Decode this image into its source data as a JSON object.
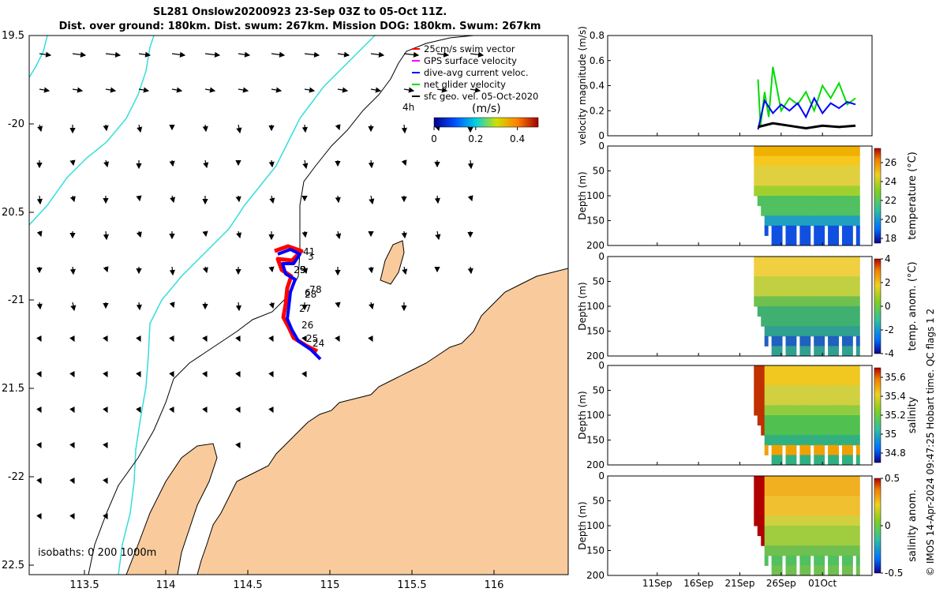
{
  "header": {
    "title_line1": "SL281 Onslow20200923 23-Sep 03Z to 05-Oct 11Z.",
    "title_line2": "Dist. over ground: 180km. Dist. swum: 267km. Mission DOG: 180km. Swum: 267km"
  },
  "footer": "© IMOS 14-Apr-2024 09:47:25 Hobart time. QC flags 1  2",
  "colors": {
    "land": "#f9cb9c",
    "track_red": "#ff0000",
    "track_blue": "#0000ff",
    "coastline": "#000000",
    "isobath_1000": "#33dddd",
    "net_velocity": "#00dd00"
  },
  "map": {
    "lon_ticks": [
      "113.5",
      "114",
      "114.5",
      "115",
      "115.5",
      "116"
    ],
    "lat_ticks": [
      "19.5",
      "-20",
      "20.5",
      "-21",
      "21.5",
      "-22",
      "22.5"
    ],
    "isobath_label": "isobaths: 0   200  1000m",
    "time_label": "4h",
    "day_labels": [
      "41",
      "3",
      "29",
      "5",
      "6",
      "7",
      "8",
      "28",
      "27",
      "26",
      "25",
      "24"
    ],
    "legend": [
      {
        "label": "25cm/s swim vector",
        "color": "#ff0000"
      },
      {
        "label": "GPS surface velocity",
        "color": "#ff00ff"
      },
      {
        "label": "dive-avg current veloc.",
        "color": "#0000ff"
      },
      {
        "label": "net glider velocity",
        "color": "#00dd00"
      },
      {
        "label": "sfc geo. vel. 05-Oct-2020",
        "color": "#000000"
      }
    ],
    "colorbar": {
      "title": "(m/s)",
      "ticks": [
        "0",
        "0.2",
        "0.4"
      ],
      "range": [
        0,
        0.5
      ]
    }
  },
  "chart_data": [
    {
      "type": "line",
      "title": "",
      "xlabel": "",
      "ylabel": "velocity magnitude (m/s)",
      "ylim": [
        0,
        0.8
      ],
      "yticks": [
        "0",
        "0.2",
        "0.4",
        "0.6",
        "0.8"
      ],
      "xlim": [
        "2020-09-05",
        "2020-10-07"
      ],
      "x_tick_labels": [
        "11Sep",
        "16Sep",
        "21Sep",
        "26Sep",
        "01Oct"
      ],
      "series": [
        {
          "name": "net glider velocity",
          "x": [
            23.2,
            23.5,
            24.0,
            24.5,
            25.0,
            26.0,
            27.0,
            28.0,
            29.0,
            30.0,
            31.0,
            32.0,
            33.0,
            34.0,
            35.0
          ],
          "values": [
            0.45,
            0.08,
            0.35,
            0.15,
            0.55,
            0.2,
            0.3,
            0.25,
            0.35,
            0.2,
            0.4,
            0.3,
            0.42,
            0.25,
            0.3
          ]
        },
        {
          "name": "dive-avg current veloc.",
          "x": [
            23.2,
            24.0,
            25.0,
            26.0,
            27.0,
            28.0,
            29.0,
            30.0,
            31.0,
            32.0,
            33.0,
            34.0,
            35.0
          ],
          "values": [
            0.05,
            0.28,
            0.18,
            0.25,
            0.2,
            0.26,
            0.15,
            0.3,
            0.18,
            0.26,
            0.22,
            0.27,
            0.25
          ]
        },
        {
          "name": "sfc geo. vel.",
          "x": [
            23.2,
            25.0,
            27.0,
            29.0,
            31.0,
            33.0,
            35.0
          ],
          "values": [
            0.07,
            0.1,
            0.08,
            0.06,
            0.08,
            0.07,
            0.08
          ]
        }
      ]
    },
    {
      "type": "heatmap",
      "ylabel": "Depth (m)",
      "ylim": [
        200,
        0
      ],
      "yticks": [
        "0",
        "50",
        "100",
        "150",
        "200"
      ],
      "colorbar_label": "temperature (°C)",
      "colorbar_range": [
        17.5,
        27.5
      ],
      "colorbar_ticks": [
        "18",
        "20",
        "22",
        "24",
        "26"
      ],
      "x_tick_labels": [
        "11Sep",
        "16Sep",
        "21Sep",
        "26Sep",
        "01Oct"
      ]
    },
    {
      "type": "heatmap",
      "ylabel": "Depth (m)",
      "ylim": [
        200,
        0
      ],
      "yticks": [
        "0",
        "50",
        "100",
        "150",
        "200"
      ],
      "colorbar_label": "temp. anom. (°C)",
      "colorbar_range": [
        -4,
        4
      ],
      "colorbar_ticks": [
        "4",
        "2",
        "0",
        "-2",
        "-4"
      ],
      "x_tick_labels": [
        "11Sep",
        "16Sep",
        "21Sep",
        "26Sep",
        "01Oct"
      ]
    },
    {
      "type": "heatmap",
      "ylabel": "Depth (m)",
      "ylim": [
        200,
        0
      ],
      "yticks": [
        "0",
        "50",
        "100",
        "150",
        "200"
      ],
      "colorbar_label": "salinity",
      "colorbar_range": [
        34.7,
        35.7
      ],
      "colorbar_ticks": [
        "35.6",
        "35.4",
        "35.2",
        "35",
        "34.8"
      ],
      "x_tick_labels": [
        "11Sep",
        "16Sep",
        "21Sep",
        "26Sep",
        "01Oct"
      ]
    },
    {
      "type": "heatmap",
      "ylabel": "Depth (m)",
      "ylim": [
        200,
        0
      ],
      "yticks": [
        "0",
        "50",
        "100",
        "150",
        "200"
      ],
      "colorbar_label": "salinity anom.",
      "colorbar_range": [
        -0.5,
        0.5
      ],
      "colorbar_ticks": [
        "0.5",
        "0",
        "-0.5"
      ],
      "x_tick_labels": [
        "11Sep",
        "16Sep",
        "21Sep",
        "26Sep",
        "01Oct"
      ]
    }
  ]
}
